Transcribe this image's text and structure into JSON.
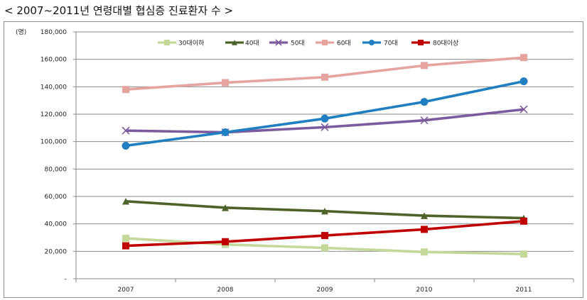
{
  "page": {
    "title": "< 2007~2011년 연령대별 협심증 진료환자 수 >"
  },
  "chart_data": {
    "type": "line",
    "title": "",
    "xlabel": "",
    "ylabel": "(명)",
    "x": [
      "2007",
      "2008",
      "2009",
      "2010",
      "2011"
    ],
    "ylim": [
      0,
      180000
    ],
    "yticks": [
      "-",
      "20,000",
      "40,000",
      "60,000",
      "80,000",
      "100,000",
      "120,000",
      "140,000",
      "160,000",
      "180,000"
    ],
    "grid": true,
    "legend_position": "top",
    "series": [
      {
        "name": "30대이하",
        "values": [
          29500,
          25000,
          22500,
          19500,
          18000
        ],
        "color": "#c4d89a",
        "marker": "square"
      },
      {
        "name": "40대",
        "values": [
          56500,
          51800,
          49300,
          46000,
          44200
        ],
        "color": "#4f6228",
        "marker": "triangle"
      },
      {
        "name": "50대",
        "values": [
          108000,
          106800,
          110500,
          115500,
          123500
        ],
        "color": "#7b5b9e",
        "marker": "x"
      },
      {
        "name": "60대",
        "values": [
          138000,
          143000,
          147000,
          155500,
          161300
        ],
        "color": "#e6a4a0",
        "marker": "square"
      },
      {
        "name": "70대",
        "values": [
          97000,
          106800,
          116800,
          129000,
          144000
        ],
        "color": "#1f7fc1",
        "marker": "circle"
      },
      {
        "name": "80대이상",
        "values": [
          24000,
          27000,
          31500,
          36000,
          42000
        ],
        "color": "#c00000",
        "marker": "square"
      }
    ]
  }
}
